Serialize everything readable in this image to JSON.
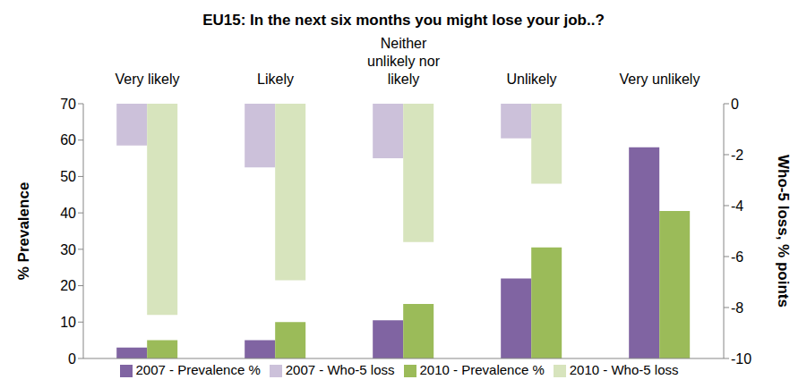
{
  "chart_data": {
    "type": "bar",
    "title": "EU15: In the next six months you might lose your job..?",
    "categories": [
      "Very likely",
      "Likely",
      "Neither unlikely nor likely",
      "Unlikely",
      "Very unlikely"
    ],
    "y_label": "% Prevalence",
    "y2_label": "Who-5 loss, % points",
    "ylim": [
      0,
      70
    ],
    "yticks": [
      0,
      10,
      20,
      30,
      40,
      50,
      60,
      70
    ],
    "y2lim": [
      -10,
      0
    ],
    "y2ticks": [
      -10,
      -8,
      -6,
      -4,
      -2,
      0
    ],
    "grid": false,
    "legend": "bottom",
    "series": [
      {
        "name": "2007 - Prevalence %",
        "color": "#8064A2",
        "values": [
          3,
          5,
          10.5,
          22,
          58
        ]
      },
      {
        "name": "2010 - Prevalence %",
        "color": "#9BBB59",
        "values": [
          5,
          10,
          15,
          30.5,
          40.5
        ]
      },
      {
        "name": "2007 - Who-5 loss",
        "color": "#CCC1DA",
        "axis": "y2",
        "values": [
          -1.64,
          -2.5,
          -2.14,
          -1.36,
          null
        ]
      },
      {
        "name": "2010 - Who-5 loss",
        "color": "#D7E4BD",
        "axis": "y2",
        "values": [
          -8.29,
          -6.93,
          -5.43,
          -3.14,
          null
        ]
      }
    ]
  }
}
